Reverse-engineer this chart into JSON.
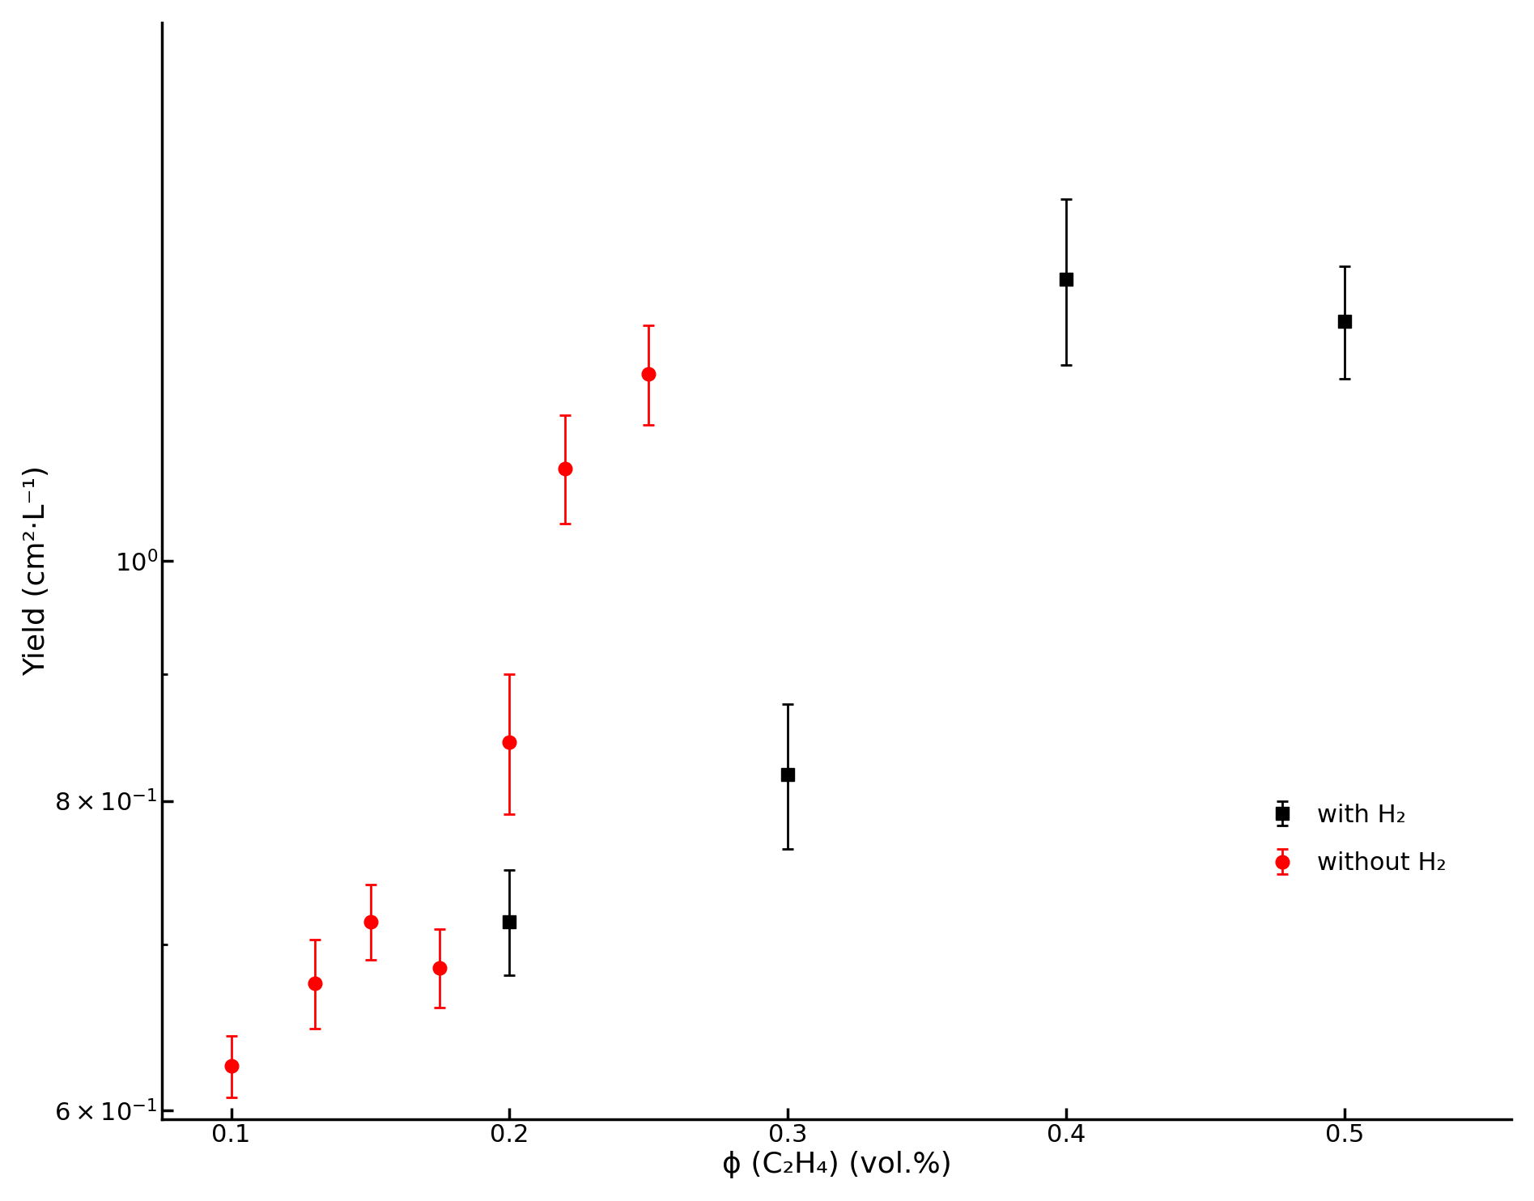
{
  "with_h2": {
    "x": [
      0.2,
      0.3,
      0.4,
      0.5
    ],
    "y": [
      0.715,
      0.82,
      1.3,
      1.25
    ],
    "yerr_low": [
      0.035,
      0.055,
      0.1,
      0.065
    ],
    "yerr_high": [
      0.035,
      0.055,
      0.1,
      0.065
    ]
  },
  "without_h2": {
    "x": [
      0.1,
      0.13,
      0.15,
      0.175,
      0.2,
      0.22,
      0.25
    ],
    "y": [
      0.625,
      0.675,
      0.715,
      0.685,
      0.845,
      1.09,
      1.19
    ],
    "yerr_low": [
      0.018,
      0.028,
      0.025,
      0.025,
      0.055,
      0.055,
      0.055
    ],
    "yerr_high": [
      0.018,
      0.028,
      0.025,
      0.025,
      0.055,
      0.055,
      0.055
    ]
  },
  "xlabel": "ϕ (C₂H₄) (vol.%)",
  "ylabel": "Yield (cm²·L⁻¹)",
  "xlim": [
    0.075,
    0.56
  ],
  "ylim": [
    0.595,
    1.65
  ],
  "legend_with": "with H₂",
  "legend_without": "without H₂",
  "marker_with": "s",
  "marker_without": "o",
  "color_with": "#000000",
  "color_without": "#ff0000",
  "marker_size_with": 11,
  "marker_size_without": 12,
  "figsize": [
    18.95,
    14.84
  ],
  "dpi": 100,
  "tick_fontsize": 22,
  "label_fontsize": 26,
  "legend_fontsize": 22
}
